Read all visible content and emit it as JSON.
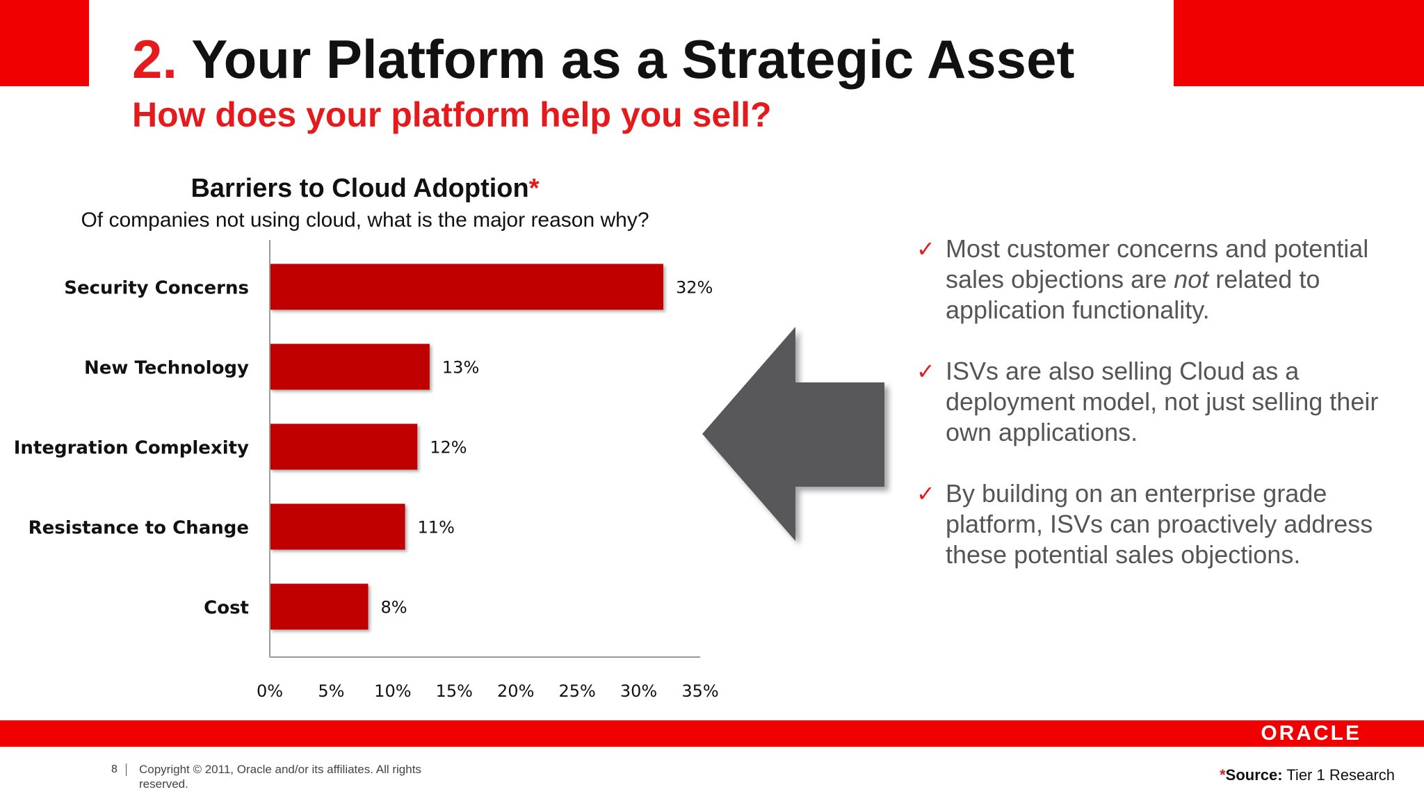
{
  "slide": {
    "title_number": "2.",
    "title_text": "Your Platform as a Strategic Asset",
    "subtitle": "How does your platform help you sell?"
  },
  "chart_header": {
    "title": "Barriers to Cloud Adoption",
    "title_mark": "*",
    "subtitle": "Of companies not using cloud, what is the major reason why?"
  },
  "chart_data": {
    "type": "bar",
    "orientation": "horizontal",
    "categories": [
      "Security Concerns",
      "New Technology",
      "Integration Complexity",
      "Resistance to Change",
      "Cost"
    ],
    "values": [
      32,
      13,
      12,
      11,
      8
    ],
    "data_labels": [
      "32%",
      "13%",
      "12%",
      "11%",
      "8%"
    ],
    "xlim": [
      0,
      35
    ],
    "xticks": [
      0,
      5,
      10,
      15,
      20,
      25,
      30,
      35
    ],
    "xtick_labels": [
      "0%",
      "5%",
      "10%",
      "15%",
      "20%",
      "25%",
      "30%",
      "35%"
    ],
    "grid": false,
    "bar_color": "#c00000"
  },
  "bullets": [
    {
      "check": "✓",
      "parts": [
        "Most customer concerns and potential sales objections are ",
        "not",
        " related to application functionality."
      ]
    },
    {
      "check": "✓",
      "text": "ISVs are also selling Cloud as a deployment model, not just selling their own applications."
    },
    {
      "check": "✓",
      "text": "By building on an enterprise grade platform, ISVs can proactively address these potential sales objections."
    }
  ],
  "footer": {
    "page_number": "8",
    "copyright": "Copyright © 2011, Oracle and/or its affiliates. All rights reserved.",
    "logo": "ORACLE",
    "source_mark": "*",
    "source_label": "Source:",
    "source_value": " Tier 1 Research"
  },
  "colors": {
    "brand_red": "#f00000",
    "title_red": "#e41a1c",
    "arrow_gray": "#58585a"
  },
  "icons": {
    "arrow": "left-arrow-icon",
    "check": "checkmark-icon"
  }
}
